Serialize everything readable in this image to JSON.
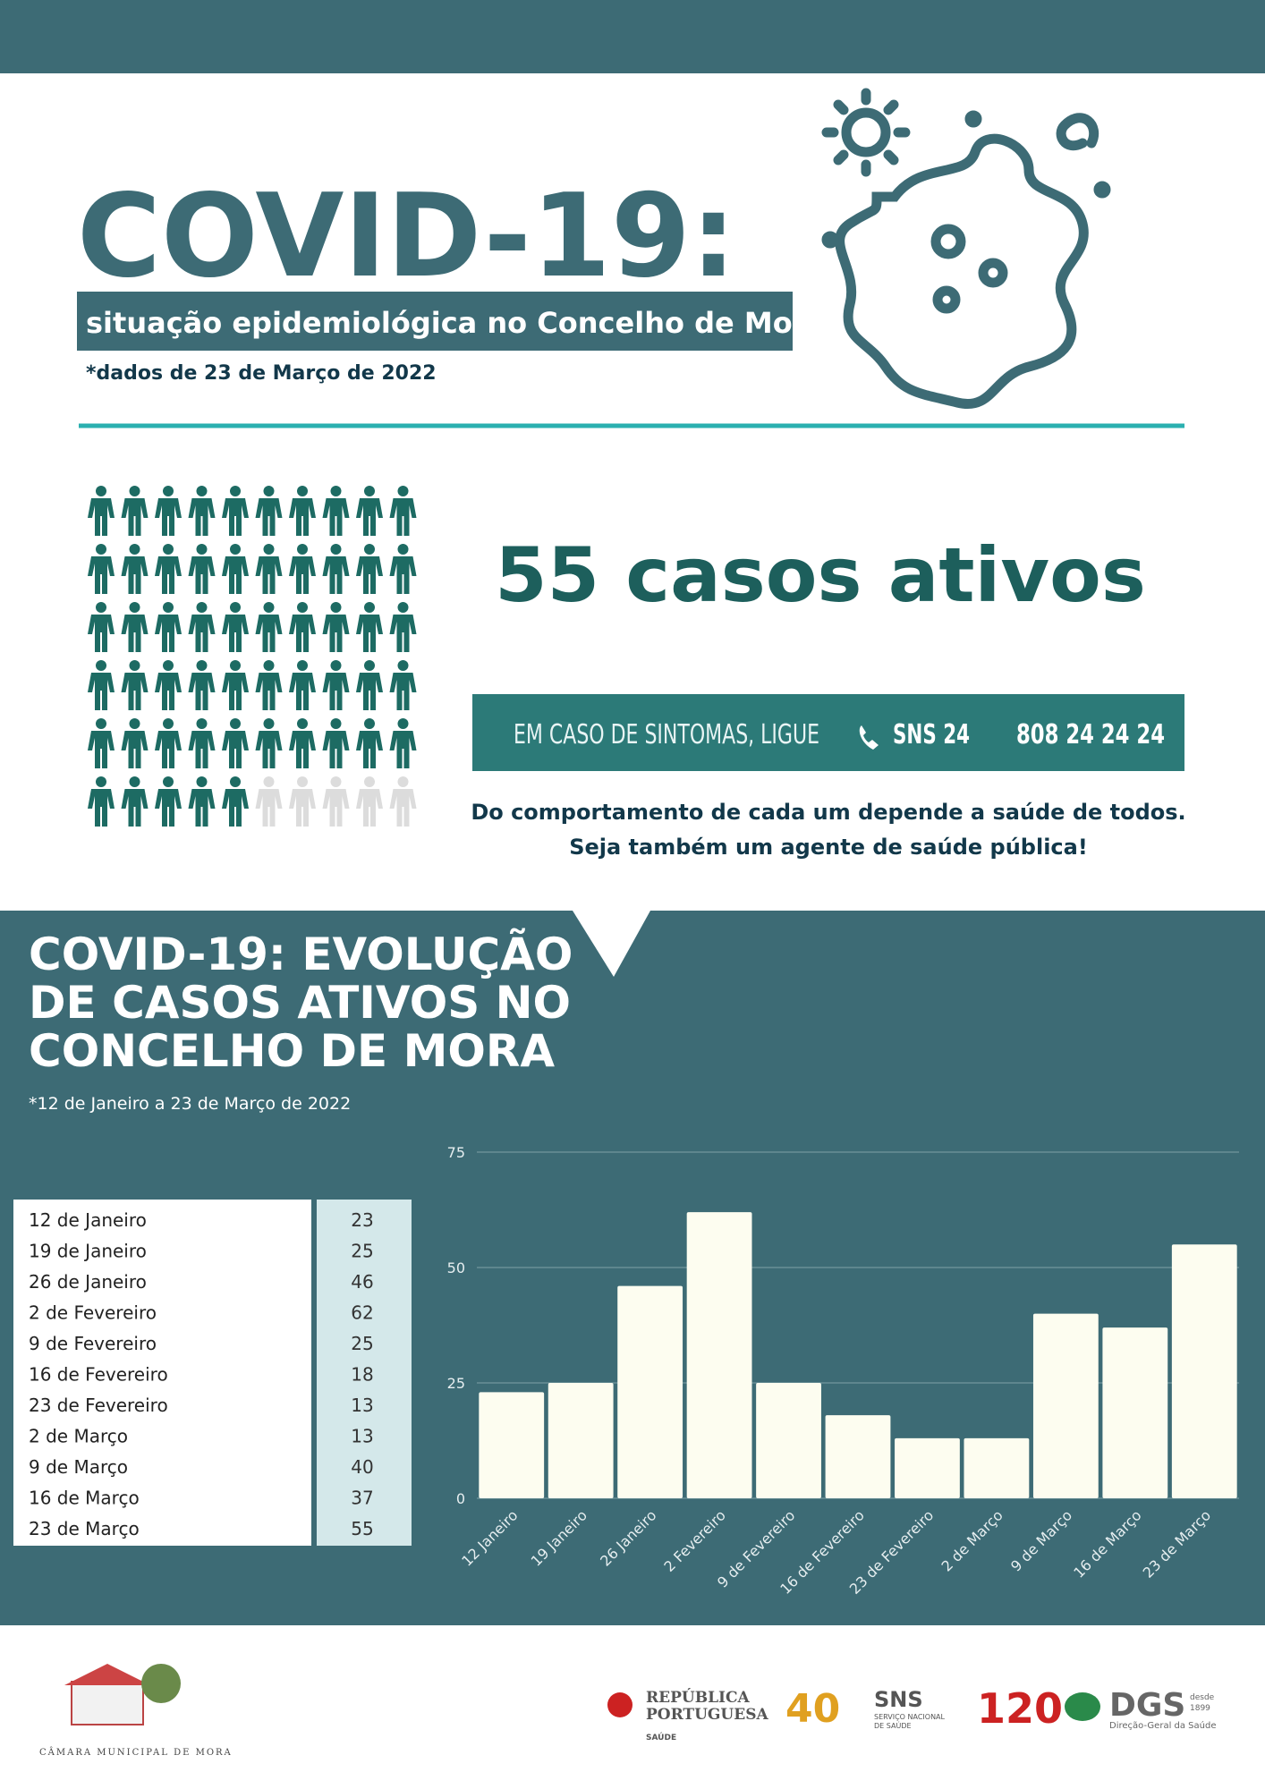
{
  "header": {
    "title": "COVID-19:",
    "subtitle": "situação epidemiológica no Concelho de Mora",
    "date_note": "*dados de 23 de Março de 2022"
  },
  "active_cases": {
    "headline": "55 casos ativos",
    "count": 55
  },
  "hotline": {
    "text": "EM CASO DE SINTOMAS, LIGUE",
    "service": "SNS 24",
    "number": "808 24 24 24"
  },
  "message": [
    "Do comportamento de cada um depende a saúde de todos.",
    "Seja também um agente de saúde pública!"
  ],
  "table": {
    "labels": [
      "12 de Janeiro",
      "19 de Janeiro",
      "26 de Janeiro",
      "2 de Fevereiro",
      "9 de Fevereiro",
      "16 de Fevereiro",
      "23 de Fevereiro",
      "2 de Março",
      "9 de Março",
      "16 de Março",
      "23 de Março"
    ]
  },
  "chart_data": {
    "type": "bar",
    "title": [
      "COVID-19: EVOLUÇÃO",
      "DE CASOS ATIVOS NO",
      "CONCELHO DE MORA"
    ],
    "subtitle": "*12 de Janeiro a 23 de Março de 2022",
    "categories": [
      "12 Janeiro",
      "19 Janeiro",
      "26 Janeiro",
      "2 Fevereiro",
      "9 de Fevereiro",
      "16 de Fevereiro",
      "23 de Fevereiro",
      "2 de Março",
      "9 de Março",
      "16 de Março",
      "23 de Março"
    ],
    "values": [
      23,
      25,
      46,
      62,
      25,
      18,
      13,
      13,
      40,
      37,
      55
    ],
    "color": "#fdfdf0",
    "ylim": [
      0,
      75
    ],
    "yticks": [
      0,
      25,
      50,
      75
    ],
    "grid": true
  },
  "footer": {
    "municipality": "CÂMARA MUNICIPAL DE MORA",
    "republic": [
      "REPÚBLICA",
      "PORTUGUESA"
    ],
    "ministry": "SAÚDE",
    "sns_years": "40",
    "sns": "SNS",
    "sns_full": [
      "SERVIÇO NACIONAL",
      "DE SAÚDE"
    ],
    "dgs_years": "120",
    "dgs": "DGS",
    "dgs_since": [
      "desde",
      "1899"
    ],
    "dgs_full": "Direção-Geral da Saúde"
  }
}
